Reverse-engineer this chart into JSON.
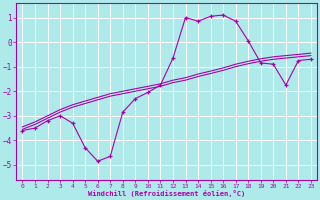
{
  "xlabel": "Windchill (Refroidissement éolien,°C)",
  "bg_color": "#aeeaea",
  "line_color": "#aa00aa",
  "grid_color": "#ffffff",
  "xlim": [
    -0.5,
    23.5
  ],
  "ylim": [
    -5.6,
    1.6
  ],
  "yticks": [
    1,
    0,
    -1,
    -2,
    -3,
    -4,
    -5
  ],
  "xticks": [
    0,
    1,
    2,
    3,
    4,
    5,
    6,
    7,
    8,
    9,
    10,
    11,
    12,
    13,
    14,
    15,
    16,
    17,
    18,
    19,
    20,
    21,
    22,
    23
  ],
  "x": [
    0,
    1,
    2,
    3,
    4,
    5,
    6,
    7,
    8,
    9,
    10,
    11,
    12,
    13,
    14,
    15,
    16,
    17,
    18,
    19,
    20,
    21,
    22,
    23
  ],
  "y_main": [
    -3.6,
    -3.5,
    -3.2,
    -3.0,
    -3.3,
    -4.3,
    -4.85,
    -4.65,
    -2.85,
    -2.3,
    -2.05,
    -1.75,
    -0.65,
    1.0,
    0.85,
    1.05,
    1.1,
    0.85,
    0.05,
    -0.85,
    -0.9,
    -1.75,
    -0.75,
    -0.7
  ],
  "y_line1": [
    -3.55,
    -3.35,
    -3.1,
    -2.85,
    -2.65,
    -2.5,
    -2.35,
    -2.2,
    -2.1,
    -2.0,
    -1.9,
    -1.8,
    -1.65,
    -1.55,
    -1.4,
    -1.28,
    -1.15,
    -1.0,
    -0.88,
    -0.78,
    -0.7,
    -0.65,
    -0.6,
    -0.55
  ],
  "y_line2": [
    -3.45,
    -3.25,
    -3.0,
    -2.75,
    -2.55,
    -2.4,
    -2.25,
    -2.1,
    -2.0,
    -1.9,
    -1.8,
    -1.7,
    -1.55,
    -1.45,
    -1.3,
    -1.18,
    -1.05,
    -0.9,
    -0.78,
    -0.68,
    -0.6,
    -0.55,
    -0.5,
    -0.45
  ]
}
